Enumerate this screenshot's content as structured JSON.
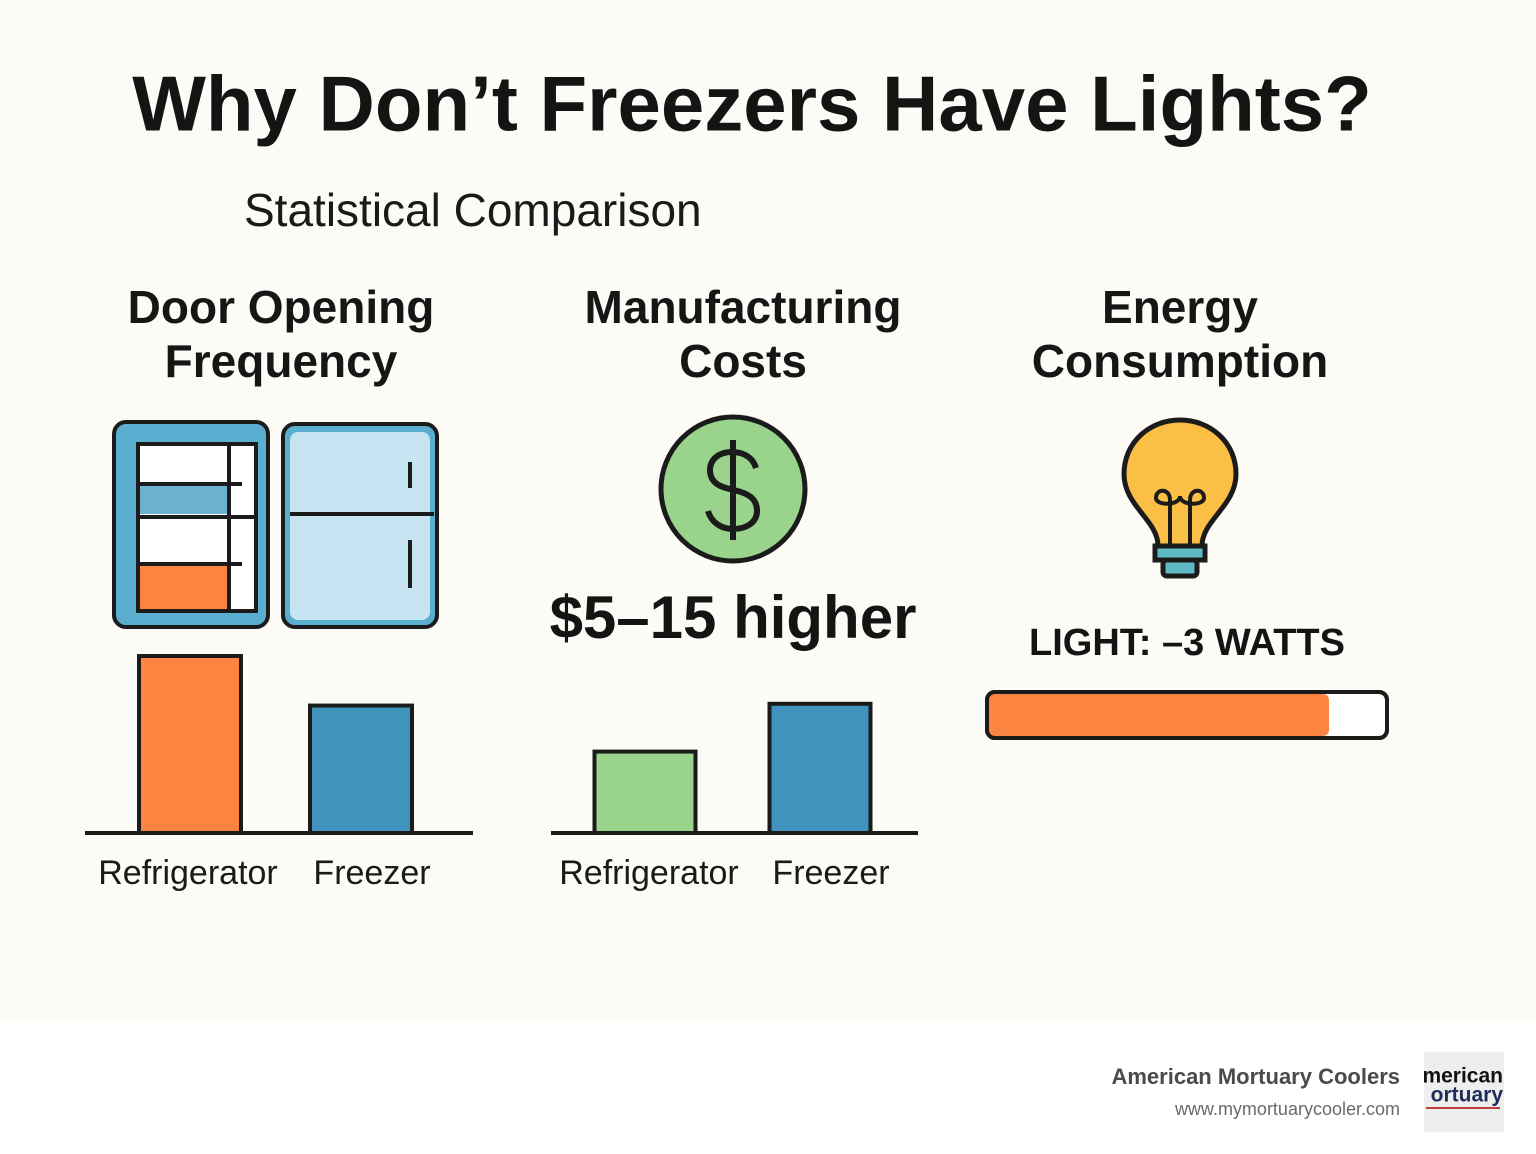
{
  "title": "Why Don’t Freezers Have Lights?",
  "subtitle": "Statistical Comparison",
  "chart_data": [
    {
      "type": "bar",
      "title": "Door Opening Frequency",
      "categories": [
        "Refrigerator",
        "Freezer"
      ],
      "values": [
        100,
        72
      ],
      "colors": [
        "#fb8440",
        "#3f93bd"
      ],
      "ylim": [
        0,
        100
      ]
    },
    {
      "type": "bar",
      "title": "Manufacturing Costs",
      "annotation": "$5–15 higher",
      "categories": [
        "Refrigerator",
        "Freezer"
      ],
      "values": [
        46,
        73
      ],
      "colors": [
        "#9ad48c",
        "#3f93bd"
      ],
      "ylim": [
        0,
        100
      ]
    },
    {
      "type": "progress",
      "title": "Energy Consumption",
      "annotation": "LIGHT: –3 WATTS",
      "values": [
        85
      ],
      "color": "#fb8440",
      "xlim": [
        0,
        100
      ]
    }
  ],
  "footer": {
    "company": "American Mortuary Coolers",
    "url": "www.mymortuarycooler.com",
    "logo": [
      "merican",
      "ortuary"
    ]
  }
}
